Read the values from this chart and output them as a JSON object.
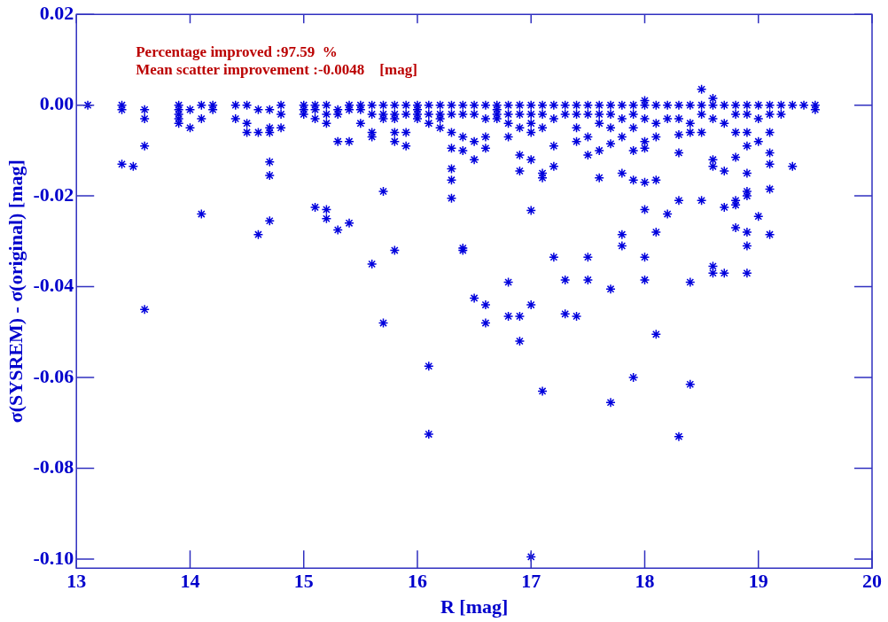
{
  "chart_data": {
    "type": "scatter",
    "xlabel": "R [mag]",
    "ylabel": "σ(SYSREM) - σ(original) [mag]",
    "annotations": [
      "Percentage improved :97.59  %",
      "Mean scatter improvement :-0.0048    [mag]"
    ],
    "xlim": [
      13,
      20
    ],
    "xticks": [
      13,
      14,
      15,
      16,
      17,
      18,
      19,
      20
    ],
    "ylim": [
      -0.102,
      0.02
    ],
    "yticks": [
      {
        "value": 0.02,
        "label": "0.02"
      },
      {
        "value": 0,
        "label": "0.00"
      },
      {
        "value": -0.02,
        "label": "-0.02"
      },
      {
        "value": -0.04,
        "label": "-0.04"
      },
      {
        "value": -0.06,
        "label": "-0.06"
      },
      {
        "value": -0.08,
        "label": "-0.08"
      },
      {
        "value": -0.1,
        "label": "-0.10"
      }
    ],
    "grid": false,
    "legend": false,
    "marker": "cross",
    "series": [
      {
        "color": "#0000dd",
        "x": [
          13.1,
          13.4,
          13.4,
          13.4,
          13.5,
          13.6,
          13.6,
          13.6,
          13.6,
          13.9,
          13.9,
          13.9,
          13.9,
          13.9,
          14.0,
          14.0,
          14.1,
          14.1,
          14.1,
          14.2,
          14.2,
          14.4,
          14.4,
          14.5,
          14.5,
          14.5,
          14.6,
          14.6,
          14.6,
          14.7,
          14.7,
          14.7,
          14.7,
          14.7,
          14.7,
          14.8,
          14.8,
          14.8,
          15.0,
          15.0,
          15.0,
          15.1,
          15.1,
          15.1,
          15.1,
          15.2,
          15.2,
          15.2,
          15.2,
          15.2,
          15.3,
          15.3,
          15.3,
          15.3,
          15.4,
          15.4,
          15.4,
          15.4,
          15.5,
          15.5,
          15.5,
          15.6,
          15.6,
          15.6,
          15.6,
          15.6,
          15.7,
          15.7,
          15.7,
          15.7,
          15.7,
          15.8,
          15.8,
          15.8,
          15.8,
          15.8,
          15.8,
          15.9,
          15.9,
          15.9,
          15.9,
          16.0,
          16.0,
          16.0,
          16.0,
          16.1,
          16.1,
          16.1,
          16.1,
          16.1,
          16.2,
          16.2,
          16.2,
          16.2,
          16.3,
          16.3,
          16.3,
          16.3,
          16.3,
          16.3,
          16.3,
          16.4,
          16.4,
          16.4,
          16.4,
          16.4,
          16.4,
          16.5,
          16.5,
          16.5,
          16.5,
          16.5,
          16.6,
          16.6,
          16.6,
          16.6,
          16.6,
          16.6,
          16.7,
          16.7,
          16.7,
          16.7,
          16.8,
          16.8,
          16.8,
          16.8,
          16.8,
          16.8,
          16.9,
          16.9,
          16.9,
          16.9,
          16.9,
          16.9,
          16.9,
          17.0,
          17.0,
          17.0,
          17.0,
          17.0,
          17.0,
          17.0,
          17.0,
          17.1,
          17.1,
          17.1,
          17.1,
          17.1,
          17.1,
          17.2,
          17.2,
          17.2,
          17.2,
          17.2,
          17.3,
          17.3,
          17.3,
          17.3,
          17.4,
          17.4,
          17.4,
          17.4,
          17.4,
          17.5,
          17.5,
          17.5,
          17.5,
          17.5,
          17.5,
          17.6,
          17.6,
          17.6,
          17.6,
          17.6,
          17.7,
          17.7,
          17.7,
          17.7,
          17.7,
          17.7,
          17.8,
          17.8,
          17.8,
          17.8,
          17.8,
          17.8,
          17.9,
          17.9,
          17.9,
          17.9,
          17.9,
          17.9,
          18.0,
          18.0,
          18.0,
          18.0,
          18.0,
          18.0,
          18.0,
          18.0,
          18.0,
          18.1,
          18.1,
          18.1,
          18.1,
          18.1,
          18.1,
          18.2,
          18.2,
          18.2,
          18.3,
          18.3,
          18.3,
          18.3,
          18.3,
          18.3,
          18.4,
          18.4,
          18.4,
          18.4,
          18.4,
          18.5,
          18.5,
          18.5,
          18.5,
          18.5,
          18.6,
          18.6,
          18.6,
          18.6,
          18.6,
          18.6,
          18.6,
          18.7,
          18.7,
          18.7,
          18.7,
          18.7,
          18.8,
          18.8,
          18.8,
          18.8,
          18.8,
          18.8,
          18.8,
          18.9,
          18.9,
          18.9,
          18.9,
          18.9,
          18.9,
          18.9,
          18.9,
          18.9,
          18.9,
          19.0,
          19.0,
          19.0,
          19.0,
          19.1,
          19.1,
          19.1,
          19.1,
          19.1,
          19.1,
          19.1,
          19.2,
          19.2,
          19.3,
          19.3,
          19.4,
          19.5,
          19.5
        ],
        "values": [
          0,
          0,
          -0.001,
          -0.013,
          -0.0135,
          -0.001,
          -0.003,
          -0.009,
          -0.045,
          0,
          -0.001,
          -0.002,
          -0.003,
          -0.004,
          -0.001,
          -0.005,
          0,
          -0.003,
          -0.024,
          0,
          -0.001,
          0,
          -0.003,
          0,
          -0.004,
          -0.006,
          -0.001,
          -0.006,
          -0.0285,
          -0.001,
          -0.005,
          -0.006,
          -0.0125,
          -0.0155,
          -0.0255,
          0,
          -0.002,
          -0.005,
          0,
          -0.001,
          -0.002,
          0,
          -0.001,
          -0.003,
          -0.0225,
          0,
          -0.002,
          -0.004,
          -0.023,
          -0.025,
          -0.001,
          -0.002,
          -0.008,
          -0.0275,
          0,
          -0.001,
          -0.008,
          -0.026,
          0,
          -0.001,
          -0.004,
          0,
          -0.002,
          -0.006,
          -0.007,
          -0.035,
          0,
          -0.002,
          -0.003,
          -0.019,
          -0.048,
          0,
          -0.002,
          -0.003,
          -0.006,
          -0.008,
          -0.032,
          0,
          -0.002,
          -0.006,
          -0.009,
          0,
          -0.001,
          -0.002,
          -0.003,
          0,
          -0.002,
          -0.004,
          -0.0575,
          -0.0725,
          0,
          -0.002,
          -0.003,
          -0.005,
          0,
          -0.002,
          -0.006,
          -0.0095,
          -0.014,
          -0.0165,
          -0.0205,
          0,
          -0.002,
          -0.007,
          -0.01,
          -0.0315,
          -0.032,
          0,
          -0.002,
          -0.008,
          -0.012,
          -0.0425,
          0,
          -0.003,
          -0.007,
          -0.0095,
          -0.044,
          -0.048,
          0,
          -0.001,
          -0.002,
          -0.003,
          0,
          -0.002,
          -0.004,
          -0.007,
          -0.039,
          -0.0465,
          0,
          -0.002,
          -0.005,
          -0.011,
          -0.0145,
          -0.0465,
          -0.052,
          0,
          -0.002,
          -0.004,
          -0.006,
          -0.012,
          -0.0232,
          -0.044,
          -0.0995,
          0,
          -0.002,
          -0.005,
          -0.015,
          -0.016,
          -0.063,
          0,
          -0.003,
          -0.009,
          -0.0135,
          -0.0335,
          0,
          -0.002,
          -0.0385,
          -0.046,
          0,
          -0.002,
          -0.005,
          -0.008,
          -0.0465,
          0,
          -0.002,
          -0.007,
          -0.011,
          -0.0335,
          -0.0385,
          0,
          -0.002,
          -0.004,
          -0.01,
          -0.016,
          0,
          -0.002,
          -0.005,
          -0.0085,
          -0.0405,
          -0.0655,
          0,
          -0.003,
          -0.007,
          -0.015,
          -0.0285,
          -0.031,
          0,
          -0.002,
          -0.005,
          -0.01,
          -0.0165,
          -0.06,
          0.001,
          0,
          -0.003,
          -0.008,
          -0.0095,
          -0.017,
          -0.023,
          -0.0335,
          -0.0385,
          0,
          -0.004,
          -0.007,
          -0.0165,
          -0.028,
          -0.0505,
          0,
          -0.003,
          -0.024,
          0,
          -0.003,
          -0.0065,
          -0.0105,
          -0.021,
          -0.073,
          0,
          -0.004,
          -0.006,
          -0.039,
          -0.0615,
          0.0035,
          0,
          -0.002,
          -0.006,
          -0.021,
          0.0015,
          0,
          -0.003,
          -0.012,
          -0.0135,
          -0.0355,
          -0.037,
          0,
          -0.004,
          -0.0145,
          -0.0225,
          -0.037,
          0,
          -0.002,
          -0.006,
          -0.0115,
          -0.021,
          -0.022,
          -0.027,
          0,
          -0.002,
          -0.006,
          -0.009,
          -0.015,
          -0.019,
          -0.02,
          -0.028,
          -0.031,
          -0.037,
          0,
          -0.003,
          -0.008,
          -0.0245,
          0,
          -0.002,
          -0.006,
          -0.0105,
          -0.013,
          -0.0185,
          -0.0285,
          0,
          -0.002,
          0,
          -0.0135,
          0,
          0,
          -0.001
        ]
      }
    ]
  }
}
